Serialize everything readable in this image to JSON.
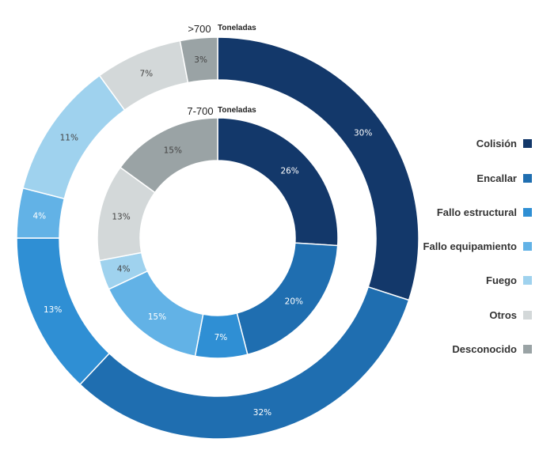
{
  "chart_data": {
    "type": "pie",
    "categories": [
      "Colisión",
      "Encallar",
      "Fallo estructural",
      "Fallo equipamiento",
      "Fuego",
      "Otros",
      "Desconocido"
    ],
    "colors": [
      "#13386a",
      "#1f6eb0",
      "#2f8fd4",
      "#62b2e6",
      "#9fd2ee",
      "#d3d8d9",
      "#9aa3a5"
    ],
    "series": [
      {
        "name": ">700 Toneladas",
        "name_main": ">700",
        "name_sub": "Toneladas",
        "values": [
          30,
          32,
          13,
          4,
          11,
          7,
          3
        ],
        "labels": [
          "30%",
          "32%",
          "13%",
          "4%",
          "11%",
          "7%",
          "3%"
        ]
      },
      {
        "name": "7-700 Toneladas",
        "name_main": "7-700",
        "name_sub": "Toneladas",
        "values": [
          26,
          20,
          7,
          15,
          4,
          13,
          15
        ],
        "labels": [
          "26%",
          "20%",
          "7%",
          "15%",
          "4%",
          "13%",
          "15%"
        ]
      }
    ],
    "legend_position": "right"
  }
}
